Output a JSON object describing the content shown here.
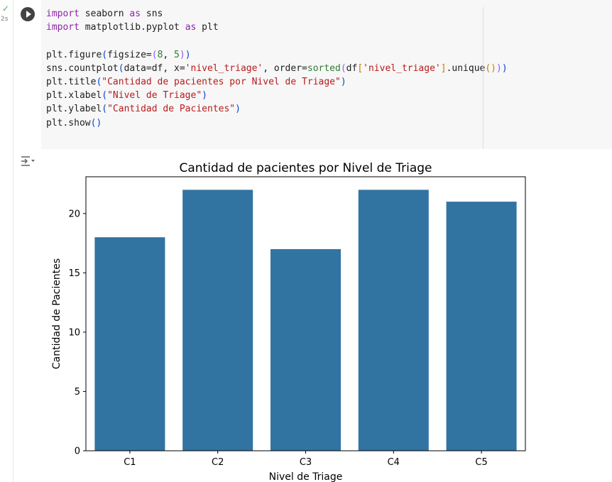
{
  "cell": {
    "status_icon": "check-icon",
    "exec_time": "2s",
    "run_icon": "play-icon",
    "output_icon": "output-collapse-icon",
    "code_lines": [
      "import seaborn as sns",
      "import matplotlib.pyplot as plt",
      "",
      "plt.figure(figsize=(8, 5))",
      "sns.countplot(data=df, x='nivel_triage', order=sorted(df['nivel_triage'].unique()))",
      "plt.title(\"Cantidad de pacientes por Nivel de Triage\")",
      "plt.xlabel(\"Nivel de Triage\")",
      "plt.ylabel(\"Cantidad de Pacientes\")",
      "plt.show()"
    ]
  },
  "colors": {
    "bar": "#3274a1",
    "code_bg": "#f7f7f7",
    "keyword": "#8e24aa",
    "string": "#b71c1c",
    "number": "#2e7d32"
  },
  "chart_data": {
    "type": "bar",
    "title": "Cantidad de pacientes por Nivel de Triage",
    "xlabel": "Nivel de Triage",
    "ylabel": "Cantidad de Pacientes",
    "categories": [
      "C1",
      "C2",
      "C3",
      "C4",
      "C5"
    ],
    "values": [
      18,
      22,
      17,
      22,
      21
    ],
    "yticks": [
      0,
      5,
      10,
      15,
      20
    ],
    "ylim": [
      0,
      23.1
    ],
    "grid": false,
    "legend": "none"
  }
}
